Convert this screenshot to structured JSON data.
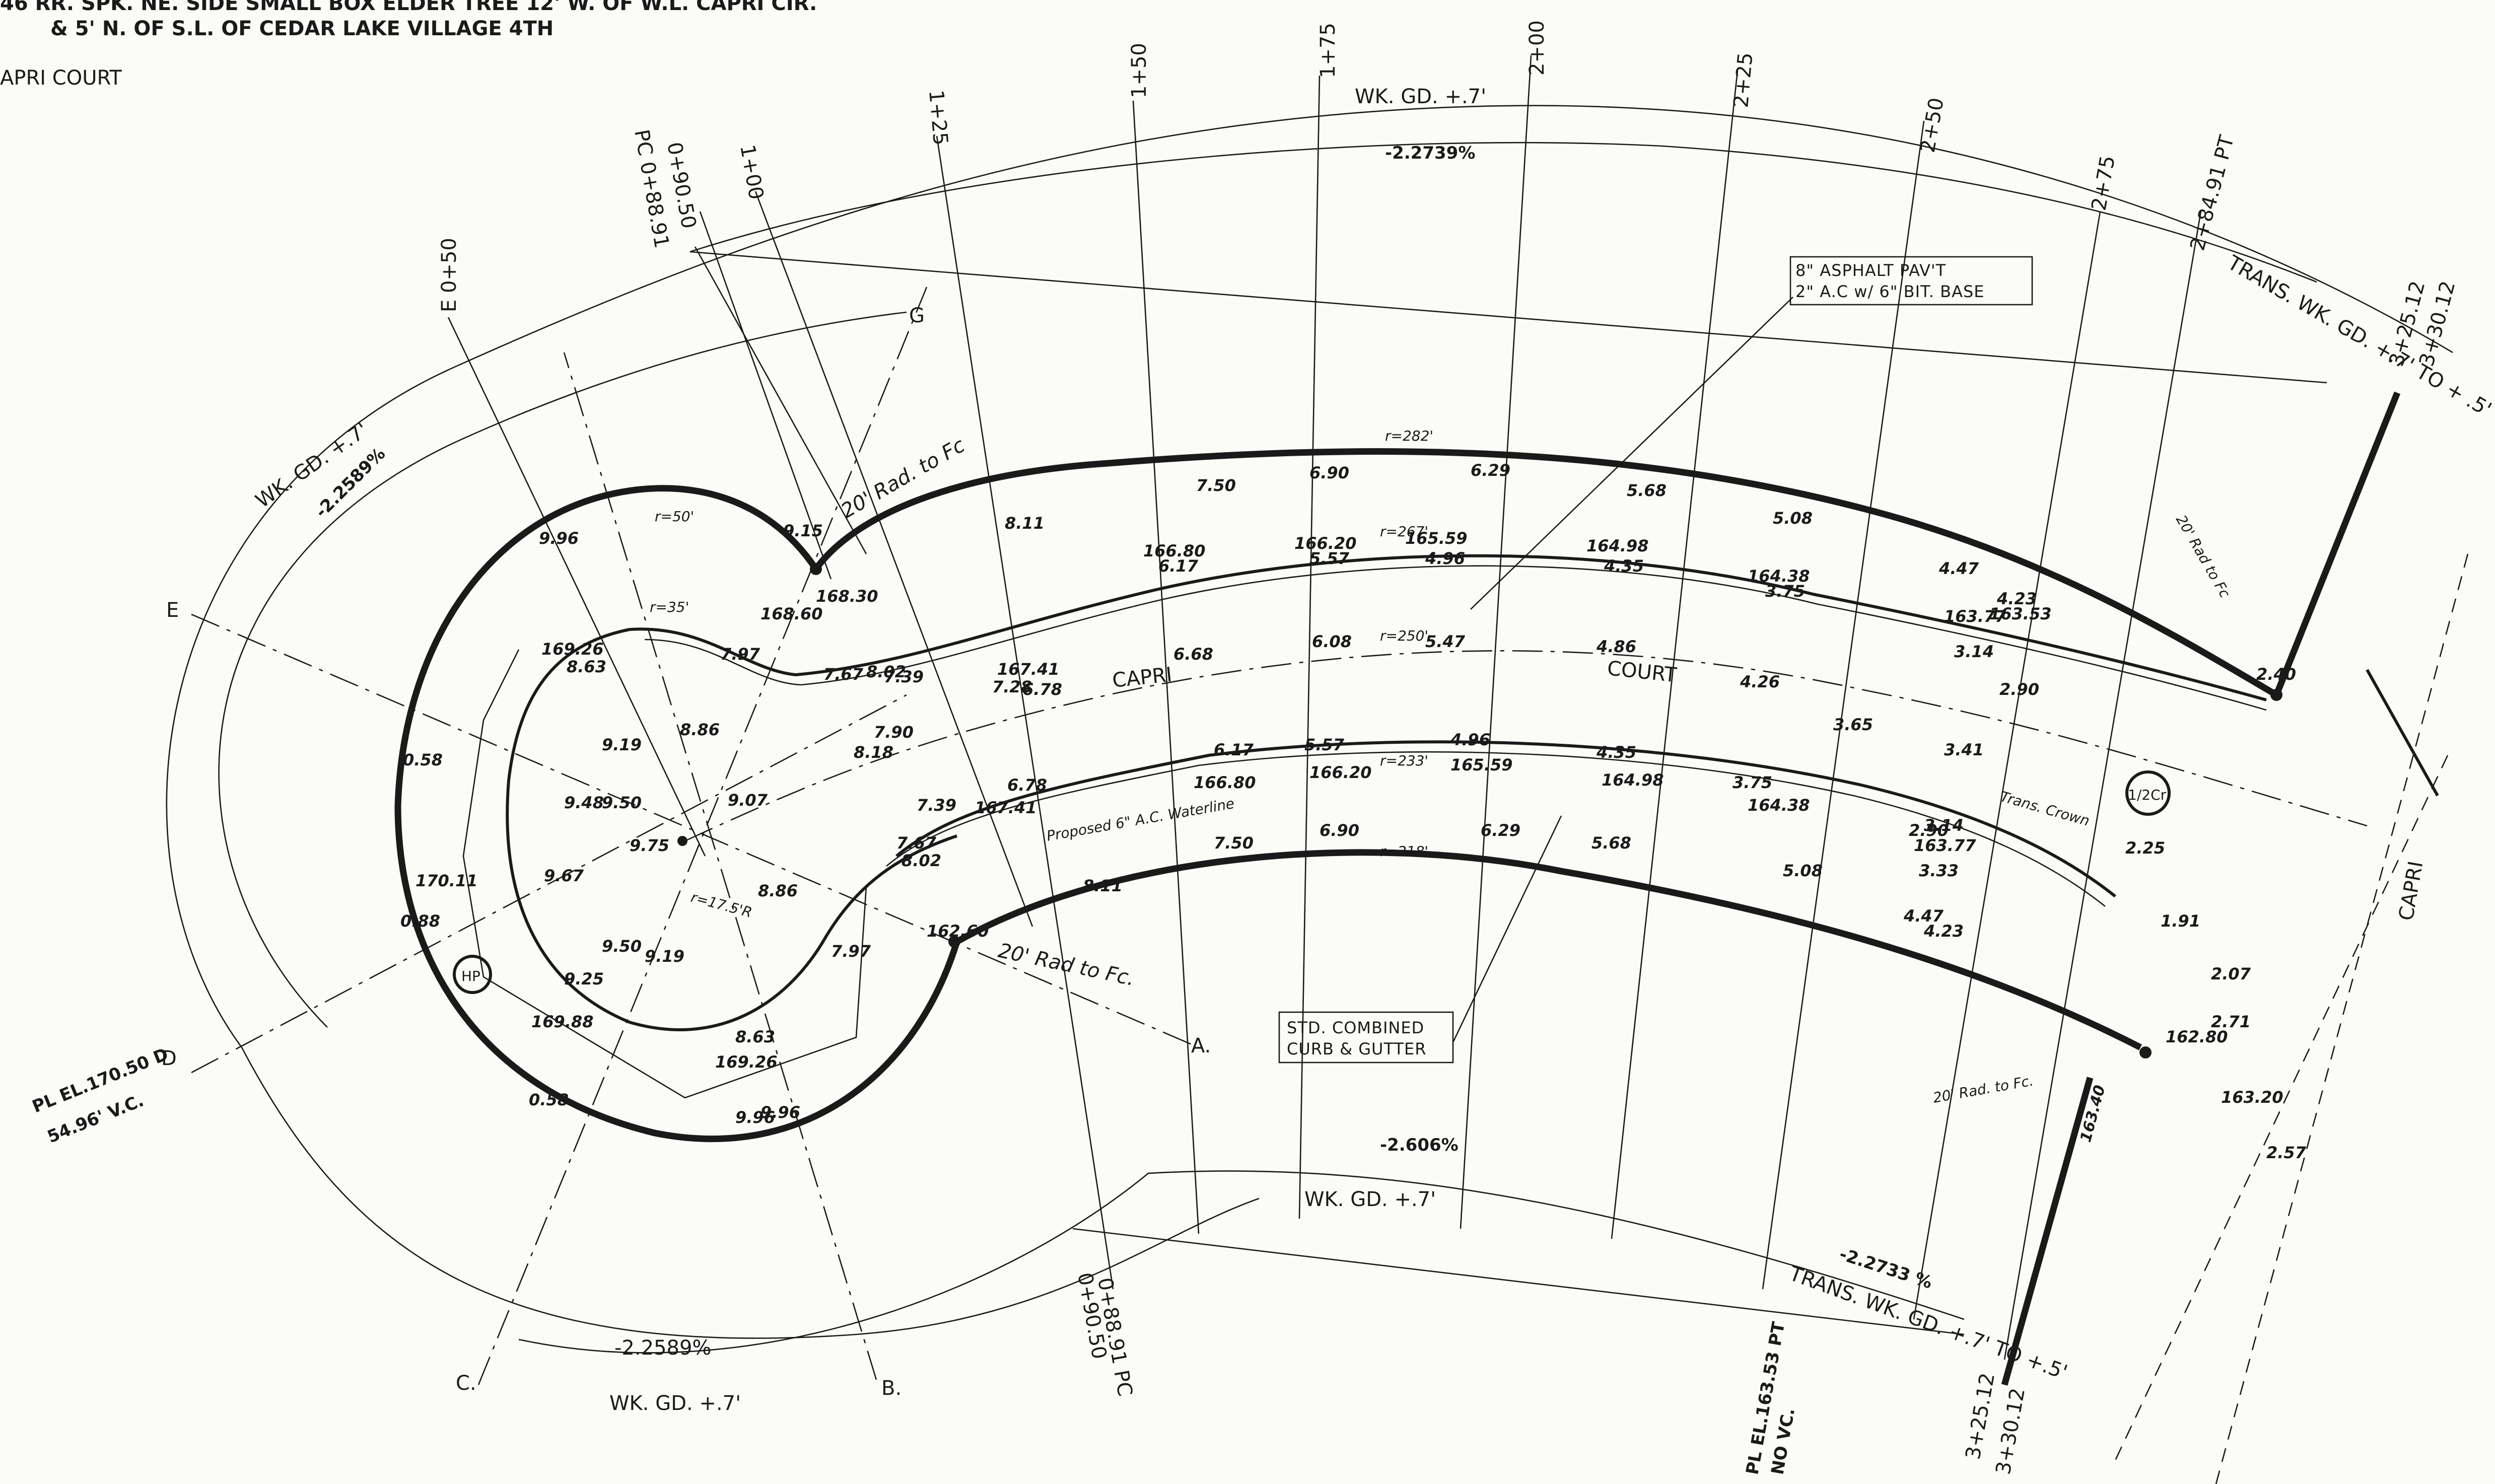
{
  "header": {
    "line1": "46  RR. SPK. NE. SIDE SMALL BOX ELDER TREE 12' W. OF W.L. CAPRI CIR.",
    "line2": "& 5' N. OF S.L. OF CEDAR LAKE VILLAGE 4TH",
    "line3": "APRI  COURT"
  },
  "labels": {
    "asphalt_line1": "8\" ASPHALT PAV'T",
    "asphalt_line2": "2\" A.C w/ 6\" BIT. BASE",
    "curb_line1": "STD. COMBINED",
    "curb_line2": "CURB & GUTTER",
    "street_name_a": "CAPRI",
    "street_name_b": "COURT",
    "street_name_c": "CAPRI",
    "waterline": "Proposed 6\" A.C. Waterline",
    "trans_crown": "Trans. Crown",
    "rad_20_top": "20' Rad. to Fc",
    "rad_20_bottom": "20' Rad to Fc.",
    "rad_20_right_top": "20' Rad to Fc",
    "rad_20_right_bottom": "20' Rad. to Fc.",
    "hp": "HP",
    "half_cr": "1/2Cr",
    "trans_wk_gd_top": "TRANS. WK. GD. +.7' TO + .5'",
    "trans_wk_gd_bottom": "TRANS. WK. GD. +.7' TO +.5'",
    "pl_el_left_1": "PL EL.170.50 D",
    "pl_el_left_2": "54.96' V.C.",
    "pl_el_right_1": "PL EL.163.53 PT",
    "pl_el_right_2": "NO VC.",
    "r_50": "r=50'",
    "r_35": "r=35'",
    "r_282": "r=282'",
    "r_267": "r=267'",
    "r_250": "r=250'",
    "r_233": "r=233'",
    "r_218": "r=218'",
    "r_175": "r=17.5'R"
  },
  "stations": {
    "s_050": "E 0+50",
    "s_pc": "PC 0+88.91",
    "s_090": "0+90.50",
    "s_100": "1+00",
    "s_125": "1+25",
    "s_150": "1+50",
    "s_175": "1+75",
    "s_200": "2+00",
    "s_225": "2+25",
    "s_250": "2+50",
    "s_275": "2+75",
    "s_pt": "2+84.91 PT",
    "s_325": "3+25.12",
    "s_330": "3+30.12",
    "s_pc_bottom": "0+88.91 PC",
    "s_090_bottom": "0+90.50",
    "s_325_bottom": "3+25.12",
    "s_330_bottom": "3+30.12"
  },
  "grades": {
    "wk_gd_top": "WK. GD. +.7'",
    "grade_top": "-2.2739%",
    "wk_gd_left": "WK. GD. +.7'",
    "grade_left": "-2.2589%",
    "wk_gd_bottom_mid": "WK. GD. +.7'",
    "grade_bottom_mid": "-2.606%",
    "grade_bottom_left": "-2.2589%",
    "wk_gd_bottom_left": "WK. GD. +.7'",
    "grade_bottom_right": "-2.2733 %"
  },
  "letters": [
    "E",
    "G",
    "A.",
    "B.",
    "C.",
    "D"
  ],
  "outer_curb_values": [
    "9.96",
    "0.58",
    "0.88",
    "0.58",
    "9.96",
    "9.15",
    "8.11",
    "7.50",
    "6.90",
    "6.29",
    "5.68",
    "5.08",
    "4.47",
    "4.23",
    "2.40"
  ],
  "inner_values": [
    "169.26",
    "8.63",
    "7.97",
    "7.67",
    "168.60",
    "168.30",
    "8.02",
    "7.39",
    "167.41",
    "6.78",
    "166.80",
    "6.17",
    "166.20",
    "5.57",
    "165.59",
    "4.96",
    "164.98",
    "4.35",
    "164.38",
    "3.75",
    "163.77",
    "3.14",
    "163.53",
    "2.90"
  ],
  "centerline_values": [
    "9.19",
    "8.86",
    "9.07",
    "9.75",
    "8.18",
    "7.90",
    "7.28",
    "6.68",
    "6.08",
    "5.47",
    "4.86",
    "4.26",
    "3.65",
    "3.41"
  ],
  "bulb_values": [
    "9.48",
    "9.50",
    "9.67",
    "170.11",
    "169.88",
    "9.25",
    "9.50",
    "9.19",
    "8.86"
  ],
  "lower_values": [
    "7.39",
    "6.78",
    "6.17",
    "5.57",
    "4.96",
    "4.35",
    "3.75",
    "3.14",
    "2.90",
    "167.41",
    "166.80",
    "166.20",
    "165.59",
    "164.98",
    "164.38",
    "163.77",
    "3.33",
    "162.60",
    "7.67",
    "8.02",
    "8.11",
    "7.50",
    "6.90",
    "6.29",
    "5.68",
    "5.08",
    "4.47",
    "4.23",
    "7.97",
    "8.63",
    "169.26",
    "9.96",
    "2.07",
    "2.71",
    "2.57",
    "162.80",
    "163.20",
    "163.40",
    "2.25",
    "1.91"
  ]
}
